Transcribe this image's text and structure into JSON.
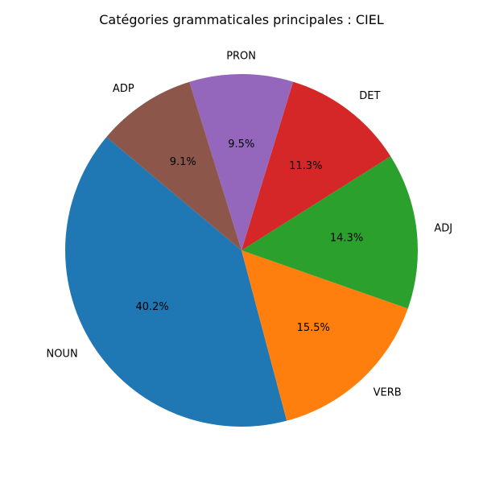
{
  "chart_data": {
    "type": "pie",
    "title": "Catégories grammaticales principales : CIEL",
    "categories": [
      "NOUN",
      "VERB",
      "ADJ",
      "DET",
      "PRON",
      "ADP"
    ],
    "values": [
      40.2,
      15.5,
      14.3,
      11.3,
      9.5,
      9.1
    ],
    "percent_labels": [
      "40.2%",
      "15.5%",
      "14.3%",
      "11.3%",
      "9.5%",
      "9.1%"
    ],
    "colors": [
      "#1f77b4",
      "#ff7f0e",
      "#2ca02c",
      "#d62728",
      "#9467bd",
      "#8c564b"
    ],
    "start_angle_deg": 140,
    "direction": "counterclockwise",
    "legend": "none"
  }
}
